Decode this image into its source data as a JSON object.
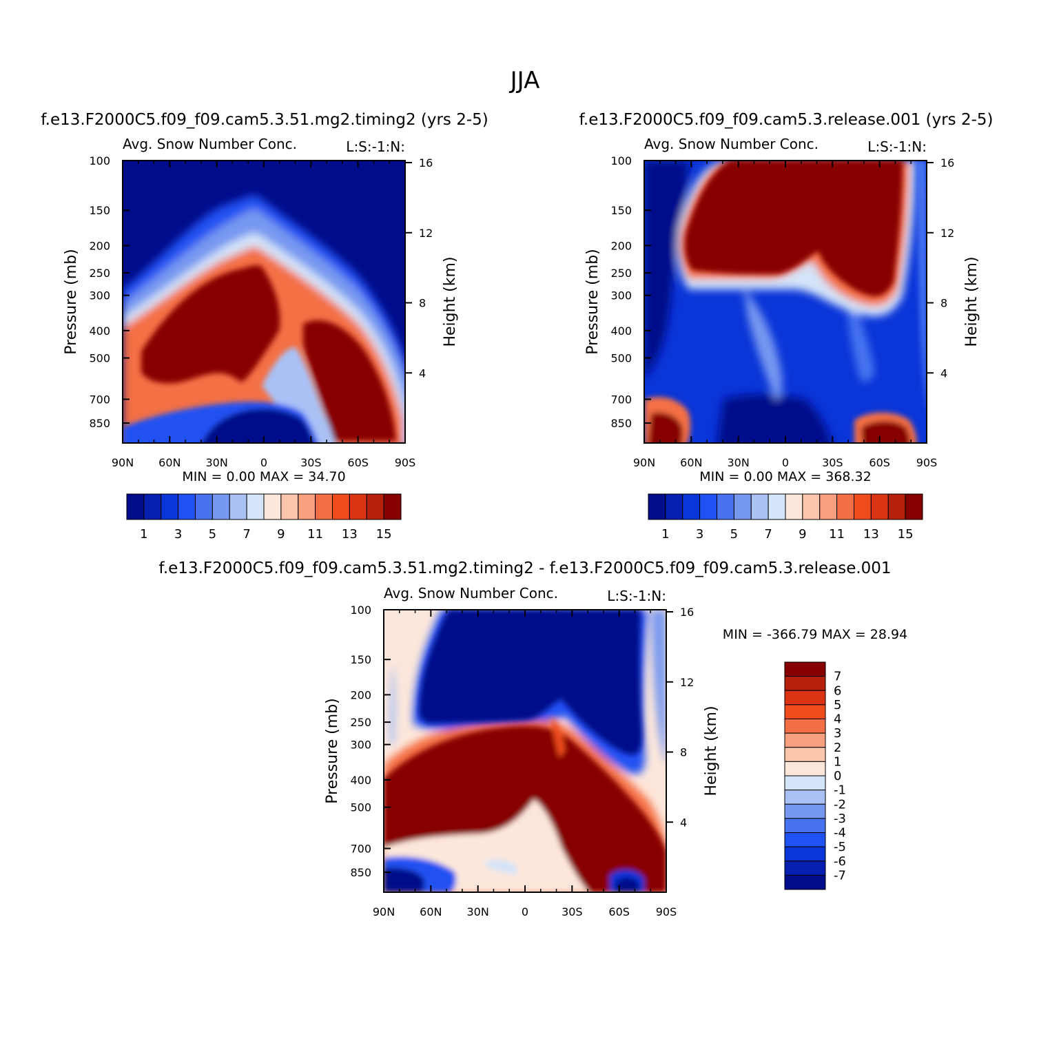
{
  "figure_title": "JJA",
  "colors": {
    "level_palette": [
      "#000c8a",
      "#061fb0",
      "#0a35d8",
      "#2051f2",
      "#4773f0",
      "#7798f0",
      "#a9c1f5",
      "#d4e4f9",
      "#fde7db",
      "#fbc6ac",
      "#f8a07f",
      "#f46f45",
      "#ef4c1e",
      "#db3415",
      "#b5210d",
      "#870000"
    ],
    "diff_palette": [
      "#000c8a",
      "#061fb0",
      "#0a35d8",
      "#2051f2",
      "#4773f0",
      "#7798f0",
      "#a9c1f5",
      "#d4e4f9",
      "#fde7db",
      "#fbc6ac",
      "#f8a07f",
      "#f46f45",
      "#ef4c1e",
      "#db3415",
      "#b5210d",
      "#870000"
    ]
  },
  "chart_data": [
    {
      "type": "heatmap",
      "title": "f.e13.F2000C5.f09_f09.cam5.3.51.mg2.timing2 (yrs 2-5)",
      "subtitle_left": "Avg. Snow Number Conc.",
      "subtitle_right": "L:S:-1:N:",
      "ylabel": "Pressure (mb)",
      "ylabel_right": "Height (km)",
      "x_ticks": [
        "90N",
        "60N",
        "30N",
        "0",
        "30S",
        "60S",
        "90S"
      ],
      "y_ticks": [
        "100",
        "150",
        "200",
        "250",
        "300",
        "400",
        "500",
        "700",
        "850"
      ],
      "y_ticks_right": [
        "16",
        "12",
        "8",
        "4"
      ],
      "ylim": [
        100,
        1000
      ],
      "y_scale": "log",
      "stats": "MIN = 0.00 MAX = 34.70",
      "colorbar_labels": [
        "1",
        "3",
        "5",
        "7",
        "9",
        "11",
        "13",
        "15"
      ],
      "colorbar_levels": [
        1,
        2,
        3,
        4,
        5,
        6,
        7,
        8,
        9,
        10,
        11,
        12,
        13,
        14,
        15
      ]
    },
    {
      "type": "heatmap",
      "title": "f.e13.F2000C5.f09_f09.cam5.3.release.001 (yrs 2-5)",
      "subtitle_left": "Avg. Snow Number Conc.",
      "subtitle_right": "L:S:-1:N:",
      "ylabel": "Pressure (mb)",
      "ylabel_right": "Height (km)",
      "x_ticks": [
        "90N",
        "60N",
        "30N",
        "0",
        "30S",
        "60S",
        "90S"
      ],
      "y_ticks": [
        "100",
        "150",
        "200",
        "250",
        "300",
        "400",
        "500",
        "700",
        "850"
      ],
      "y_ticks_right": [
        "16",
        "12",
        "8",
        "4"
      ],
      "ylim": [
        100,
        1000
      ],
      "y_scale": "log",
      "stats": "MIN = 0.00 MAX = 368.32",
      "colorbar_labels": [
        "1",
        "3",
        "5",
        "7",
        "9",
        "11",
        "13",
        "15"
      ],
      "colorbar_levels": [
        1,
        2,
        3,
        4,
        5,
        6,
        7,
        8,
        9,
        10,
        11,
        12,
        13,
        14,
        15
      ]
    },
    {
      "type": "heatmap",
      "title": "f.e13.F2000C5.f09_f09.cam5.3.51.mg2.timing2 - f.e13.F2000C5.f09_f09.cam5.3.release.001",
      "subtitle_left": "Avg. Snow Number Conc.",
      "subtitle_right": "L:S:-1:N:",
      "ylabel": "Pressure (mb)",
      "ylabel_right": "Height (km)",
      "x_ticks": [
        "90N",
        "60N",
        "30N",
        "0",
        "30S",
        "60S",
        "90S"
      ],
      "y_ticks": [
        "100",
        "150",
        "200",
        "250",
        "300",
        "400",
        "500",
        "700",
        "850"
      ],
      "y_ticks_right": [
        "16",
        "12",
        "8",
        "4"
      ],
      "ylim": [
        100,
        1000
      ],
      "y_scale": "log",
      "stats": "MIN = -366.79 MAX = 28.94",
      "colorbar_labels": [
        "7",
        "6",
        "5",
        "4",
        "3",
        "2",
        "1",
        "0",
        "-1",
        "-2",
        "-3",
        "-4",
        "-5",
        "-6",
        "-7"
      ],
      "colorbar_levels": [
        7,
        6,
        5,
        4,
        3,
        2,
        1,
        0,
        -1,
        -2,
        -3,
        -4,
        -5,
        -6,
        -7
      ]
    }
  ]
}
